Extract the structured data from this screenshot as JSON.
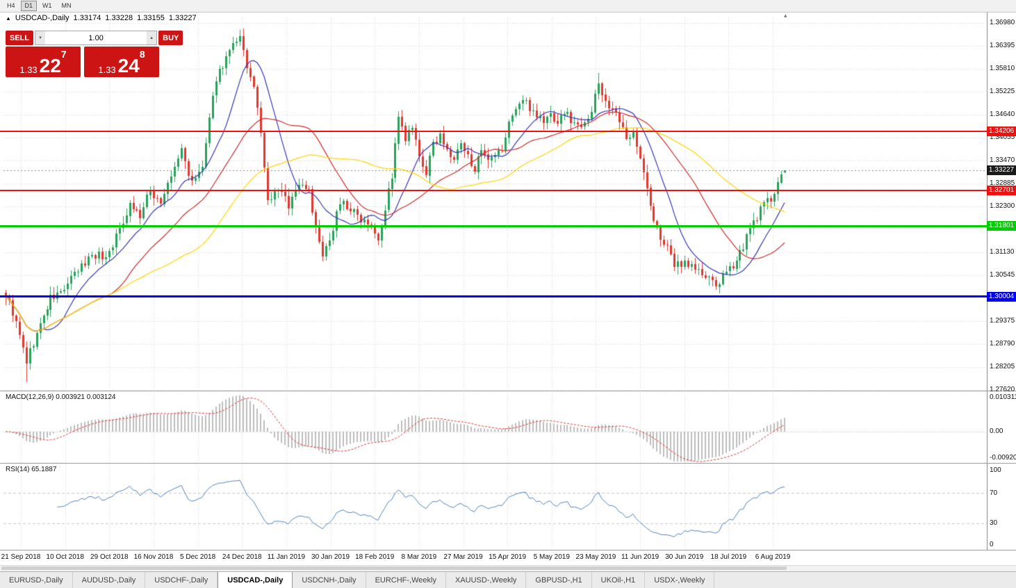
{
  "toolbar": {
    "timeframes": [
      "H4",
      "D1",
      "W1",
      "MN"
    ],
    "active": "D1"
  },
  "chart": {
    "collapse_icon": "▲",
    "title": "USDCAD-,Daily",
    "shift_marker": "▴",
    "ohlc": {
      "open": "1.33174",
      "high": "1.33228",
      "low": "1.33155",
      "close": "1.33227"
    }
  },
  "trade_panel": {
    "sell_label": "SELL",
    "buy_label": "BUY",
    "volume": "1.00",
    "volume_down_icon": "▼",
    "volume_up_icon": "▲",
    "sell_price": {
      "main": "1.33",
      "big": "22",
      "sup": "7"
    },
    "buy_price": {
      "main": "1.33",
      "big": "24",
      "sup": "8"
    },
    "panel_color": "#cc1414"
  },
  "price_axis": {
    "labels": [
      "1.36980",
      "1.36395",
      "1.35810",
      "1.35225",
      "1.34640",
      "1.34055",
      "1.33470",
      "1.32885",
      "1.32300",
      "1.31715",
      "1.31130",
      "1.30545",
      "1.29960",
      "1.29375",
      "1.28790",
      "1.28205",
      "1.27620"
    ]
  },
  "hlines": [
    {
      "label": "1.34206",
      "price": 1.34206,
      "color": "#ee1111",
      "thickness": 2
    },
    {
      "label": "1.32701",
      "price": 1.32701,
      "color": "#ee1111",
      "thickness": 2
    },
    {
      "label": "1.31801",
      "price": 1.31801,
      "color": "#00ce00",
      "thickness": 3
    },
    {
      "label": "1.30004",
      "price": 1.30004,
      "color": "#0000ee",
      "thickness": 3
    }
  ],
  "current_price": {
    "label": "1.33227",
    "value": 1.33227,
    "tag_bg": "#1a1a1a"
  },
  "macd": {
    "label": "MACD(12,26,9) 0.003921 0.003124",
    "axis": [
      "0.010311",
      "0.00",
      "-0.009203"
    ]
  },
  "rsi": {
    "label": "RSI(14) 65.1887",
    "axis": [
      "100",
      "70",
      "30",
      "0"
    ]
  },
  "date_axis": [
    "21 Sep 2018",
    "10 Oct 2018",
    "29 Oct 2018",
    "16 Nov 2018",
    "5 Dec 2018",
    "24 Dec 2018",
    "11 Jan 2019",
    "30 Jan 2019",
    "18 Feb 2019",
    "8 Mar 2019",
    "27 Mar 2019",
    "15 Apr 2019",
    "5 May 2019",
    "23 May 2019",
    "11 Jun 2019",
    "30 Jun 2019",
    "18 Jul 2019",
    "6 Aug 2019"
  ],
  "tabs": {
    "items": [
      "EURUSD-,Daily",
      "AUDUSD-,Daily",
      "USDCHF-,Daily",
      "USDCAD-,Daily",
      "USDCNH-,Daily",
      "EURCHF-,Weekly",
      "XAUUSD-,Weekly",
      "GBPUSD-,H1",
      "UKOil-,H1",
      "USDX-,Weekly"
    ],
    "active_index": 3
  },
  "chart_data": {
    "type": "candlestick",
    "symbol": "USDCAD-",
    "period": "Daily",
    "candle_count": 227,
    "visible_range": {
      "first_label": "21 Sep 2018",
      "last_label": "6 Aug 2019"
    },
    "price_axis_top": 1.3698,
    "price_axis_step": 0.00585,
    "last_candle": {
      "open": 1.33174,
      "high": 1.33228,
      "low": 1.33155,
      "close": 1.33227
    },
    "up_color": "#27a05a",
    "down_color": "#df372e",
    "close_waypoints": [
      [
        0,
        1.3005
      ],
      [
        2,
        1.296
      ],
      [
        6,
        1.2835
      ],
      [
        9,
        1.2905
      ],
      [
        13,
        1.2995
      ],
      [
        16,
        1.301
      ],
      [
        21,
        1.3065
      ],
      [
        25,
        1.311
      ],
      [
        29,
        1.31
      ],
      [
        33,
        1.317
      ],
      [
        36,
        1.324
      ],
      [
        39,
        1.3205
      ],
      [
        42,
        1.327
      ],
      [
        45,
        1.324
      ],
      [
        48,
        1.3305
      ],
      [
        51,
        1.3375
      ],
      [
        54,
        1.3285
      ],
      [
        57,
        1.333
      ],
      [
        61,
        1.356
      ],
      [
        65,
        1.3625
      ],
      [
        68,
        1.3655
      ],
      [
        70,
        1.359
      ],
      [
        73,
        1.349
      ],
      [
        76,
        1.324
      ],
      [
        79,
        1.3275
      ],
      [
        82,
        1.3235
      ],
      [
        85,
        1.329
      ],
      [
        88,
        1.3275
      ],
      [
        90,
        1.317
      ],
      [
        92,
        1.31
      ],
      [
        94,
        1.3135
      ],
      [
        96,
        1.3225
      ],
      [
        98,
        1.324
      ],
      [
        102,
        1.3205
      ],
      [
        106,
        1.319
      ],
      [
        108,
        1.315
      ],
      [
        110,
        1.3225
      ],
      [
        112,
        1.331
      ],
      [
        114,
        1.3455
      ],
      [
        116,
        1.34
      ],
      [
        118,
        1.343
      ],
      [
        120,
        1.335
      ],
      [
        122,
        1.3315
      ],
      [
        124,
        1.3385
      ],
      [
        126,
        1.342
      ],
      [
        128,
        1.3365
      ],
      [
        130,
        1.335
      ],
      [
        132,
        1.3385
      ],
      [
        134,
        1.3355
      ],
      [
        136,
        1.333
      ],
      [
        138,
        1.3365
      ],
      [
        140,
        1.334
      ],
      [
        142,
        1.3355
      ],
      [
        144,
        1.3375
      ],
      [
        147,
        1.347
      ],
      [
        150,
        1.35
      ],
      [
        154,
        1.3465
      ],
      [
        156,
        1.3445
      ],
      [
        158,
        1.3465
      ],
      [
        160,
        1.3445
      ],
      [
        162,
        1.347
      ],
      [
        166,
        1.3435
      ],
      [
        170,
        1.347
      ],
      [
        172,
        1.3545
      ],
      [
        174,
        1.35
      ],
      [
        178,
        1.3445
      ],
      [
        180,
        1.34
      ],
      [
        182,
        1.343
      ],
      [
        184,
        1.335
      ],
      [
        186,
        1.3275
      ],
      [
        188,
        1.319
      ],
      [
        190,
        1.3155
      ],
      [
        192,
        1.312
      ],
      [
        194,
        1.308
      ],
      [
        197,
        1.309
      ],
      [
        200,
        1.3075
      ],
      [
        202,
        1.3055
      ],
      [
        204,
        1.304
      ],
      [
        206,
        1.303
      ],
      [
        208,
        1.3048
      ],
      [
        210,
        1.3065
      ],
      [
        212,
        1.31
      ],
      [
        214,
        1.313
      ],
      [
        216,
        1.317
      ],
      [
        218,
        1.3205
      ],
      [
        220,
        1.3235
      ],
      [
        222,
        1.325
      ],
      [
        224,
        1.3295
      ],
      [
        226,
        1.33227
      ]
    ],
    "wick_lows": [
      [
        6,
        1.2782
      ]
    ],
    "wick_highs": [
      [
        68,
        1.3676
      ],
      [
        114,
        1.3472
      ],
      [
        172,
        1.357
      ]
    ],
    "moving_averages": [
      {
        "period": 12,
        "color": "#3434b8"
      },
      {
        "period": 30,
        "color": "#d02828"
      },
      {
        "period": 55,
        "color": "#ffd300"
      }
    ],
    "indicators": {
      "macd": {
        "fast": 12,
        "slow": 26,
        "signal_period": 9,
        "main_value": 0.003921,
        "signal_value": 0.003124,
        "scale_max": 0.010311,
        "scale_min": -0.009203,
        "histogram_color": "#bdbdbd",
        "signal_color": "#e03030"
      },
      "rsi": {
        "period": 14,
        "value": 65.1887,
        "levels": [
          70,
          30
        ],
        "line_color": "#4f81bd"
      }
    },
    "hline_prices": [
      1.34206,
      1.32701,
      1.31801,
      1.30004
    ]
  }
}
